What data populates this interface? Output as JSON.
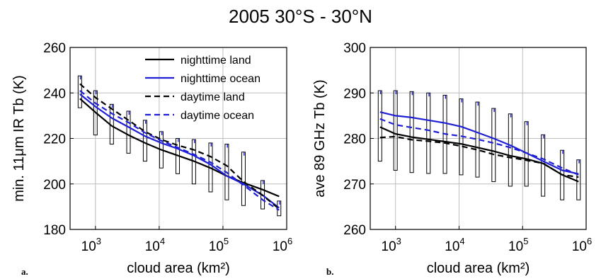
{
  "figure_title": "2005 30°S - 30°N",
  "legend": [
    {
      "label": "nighttime land",
      "color": "#000000",
      "dash": false
    },
    {
      "label": "nighttime ocean",
      "color": "#1f1fd6",
      "dash": false
    },
    {
      "label": "daytime land",
      "color": "#000000",
      "dash": true
    },
    {
      "label": "daytime ocean",
      "color": "#1f1fd6",
      "dash": true
    }
  ],
  "chart_data": [
    {
      "type": "line",
      "panel_label": "a.",
      "xlabel": "cloud area (km²)",
      "ylabel": "min. 11μm IR Tb (K)",
      "xscale": "log",
      "xlim": [
        400,
        1000000
      ],
      "ylim": [
        180,
        260
      ],
      "xticks": [
        1000,
        10000,
        100000,
        1000000
      ],
      "xtick_labels": [
        [
          "10",
          "3"
        ],
        [
          "10",
          "4"
        ],
        [
          "10",
          "5"
        ],
        [
          "10",
          "6"
        ]
      ],
      "yticks": [
        180,
        200,
        220,
        240,
        260
      ],
      "grid": true,
      "legend_position": "top-right",
      "x": [
        570,
        1000,
        1800,
        3300,
        6000,
        10800,
        19500,
        35000,
        64000,
        115000,
        210000,
        420000,
        760000
      ],
      "series": [
        {
          "name": "nighttime land",
          "color": "#000000",
          "dash": false,
          "values": [
            237.5,
            231.5,
            225.5,
            221.5,
            218,
            215,
            212.5,
            210,
            207,
            203.5,
            200.5,
            197.5,
            194.5
          ]
        },
        {
          "name": "nighttime ocean",
          "color": "#1f1fd6",
          "dash": false,
          "values": [
            239.5,
            234,
            229,
            225,
            221,
            218,
            215.5,
            212.5,
            208.5,
            203.5,
            200,
            195,
            189.5
          ]
        },
        {
          "name": "daytime land",
          "color": "#000000",
          "dash": true,
          "values": [
            244,
            238,
            233,
            228,
            223,
            219.5,
            217,
            215,
            212,
            208,
            201,
            195,
            189
          ]
        },
        {
          "name": "daytime ocean",
          "color": "#1f1fd6",
          "dash": true,
          "values": [
            241,
            235.5,
            231,
            227,
            222.5,
            219,
            216,
            213,
            209.5,
            205,
            199.5,
            193,
            188.5
          ]
        }
      ],
      "boxes": [
        {
          "x": 570,
          "low": 233.5,
          "high": 247.5
        },
        {
          "x": 1000,
          "low": 221.5,
          "high": 241
        },
        {
          "x": 1800,
          "low": 217.5,
          "high": 235
        },
        {
          "x": 3300,
          "low": 213.5,
          "high": 232
        },
        {
          "x": 6000,
          "low": 210,
          "high": 228
        },
        {
          "x": 10800,
          "low": 207,
          "high": 223
        },
        {
          "x": 19500,
          "low": 204.5,
          "high": 220
        },
        {
          "x": 35000,
          "low": 200,
          "high": 219.5
        },
        {
          "x": 64000,
          "low": 196.5,
          "high": 218
        },
        {
          "x": 115000,
          "low": 193,
          "high": 217.5
        },
        {
          "x": 210000,
          "low": 190.5,
          "high": 214
        },
        {
          "x": 420000,
          "low": 189,
          "high": 201.5
        },
        {
          "x": 760000,
          "low": 186,
          "high": 192.5
        }
      ]
    },
    {
      "type": "line",
      "panel_label": "b.",
      "xlabel": "cloud area (km²)",
      "ylabel": "ave 89 GHz Tb (K)",
      "xscale": "log",
      "xlim": [
        400,
        1000000
      ],
      "ylim": [
        260,
        300
      ],
      "xticks": [
        1000,
        10000,
        100000,
        1000000
      ],
      "xtick_labels": [
        [
          "10",
          "3"
        ],
        [
          "10",
          "4"
        ],
        [
          "10",
          "5"
        ],
        [
          "10",
          "6"
        ]
      ],
      "yticks": [
        260,
        270,
        280,
        290,
        300
      ],
      "grid": true,
      "x": [
        570,
        1000,
        1800,
        3300,
        6000,
        10800,
        19500,
        35000,
        64000,
        115000,
        210000,
        420000,
        760000
      ],
      "series": [
        {
          "name": "nighttime land",
          "color": "#000000",
          "dash": false,
          "values": [
            282.5,
            281,
            280.3,
            279.8,
            279.3,
            278.8,
            278,
            277.2,
            276.2,
            275.5,
            274.5,
            272,
            270.5
          ]
        },
        {
          "name": "nighttime ocean",
          "color": "#1f1fd6",
          "dash": false,
          "values": [
            285.8,
            285,
            284.6,
            284,
            283.4,
            282.6,
            281.3,
            280,
            278.5,
            276.8,
            275,
            273,
            272.2
          ]
        },
        {
          "name": "daytime land",
          "color": "#000000",
          "dash": true,
          "values": [
            280.2,
            280.4,
            279.7,
            279.4,
            279,
            278.3,
            277.5,
            276.5,
            275.8,
            275.2,
            274.5,
            272,
            271.5
          ]
        },
        {
          "name": "daytime ocean",
          "color": "#1f1fd6",
          "dash": true,
          "values": [
            284.3,
            283,
            282.4,
            281.8,
            281,
            280.5,
            279.8,
            279,
            278,
            276.8,
            275.5,
            273.5,
            272
          ]
        }
      ],
      "boxes": [
        {
          "x": 570,
          "low": 275,
          "high": 290.5
        },
        {
          "x": 1000,
          "low": 273,
          "high": 290.5
        },
        {
          "x": 1800,
          "low": 272.5,
          "high": 290.3
        },
        {
          "x": 3300,
          "low": 272.3,
          "high": 290
        },
        {
          "x": 6000,
          "low": 272.3,
          "high": 289.5
        },
        {
          "x": 10800,
          "low": 272,
          "high": 288.7
        },
        {
          "x": 19500,
          "low": 271.5,
          "high": 288
        },
        {
          "x": 35000,
          "low": 270.5,
          "high": 286.6
        },
        {
          "x": 64000,
          "low": 269.5,
          "high": 285.4
        },
        {
          "x": 115000,
          "low": 269.5,
          "high": 283.7
        },
        {
          "x": 210000,
          "low": 267.3,
          "high": 280.8
        },
        {
          "x": 420000,
          "low": 266.5,
          "high": 277.4
        },
        {
          "x": 760000,
          "low": 266.5,
          "high": 275.3
        }
      ]
    }
  ]
}
